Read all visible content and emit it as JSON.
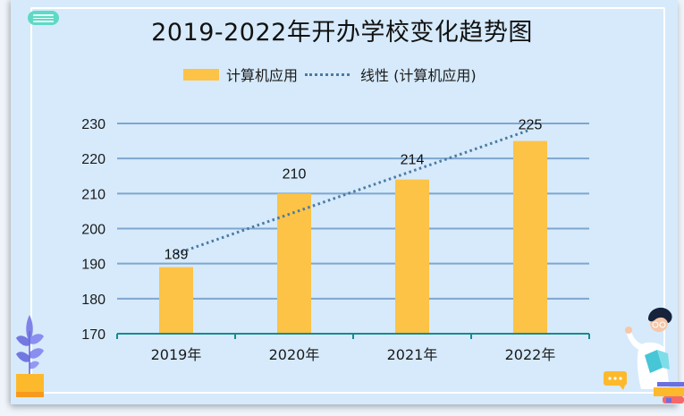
{
  "window": {
    "menu_icon": "hamburger-menu-icon"
  },
  "chart_data": {
    "type": "bar",
    "title": "2019-2022年开办学校变化趋势图",
    "categories": [
      "2019年",
      "2020年",
      "2021年",
      "2022年"
    ],
    "series": [
      {
        "name": "计算机应用",
        "type": "bar",
        "color": "#FCC347",
        "values": [
          189,
          210,
          214,
          225
        ]
      },
      {
        "name": "线性 (计算机应用)",
        "type": "line",
        "style": "dotted",
        "color": "#4B7AA3",
        "values": [
          192.8,
          204.6,
          216.4,
          228.2
        ]
      }
    ],
    "data_labels": [
      "189",
      "210",
      "214",
      "225"
    ],
    "xlabel": "",
    "ylabel": "",
    "ylim": [
      170,
      230
    ],
    "yticks": [
      "170",
      "180",
      "190",
      "200",
      "210",
      "220",
      "230"
    ],
    "grid": true,
    "legend_position": "top"
  },
  "legend": {
    "bar_label": "计算机应用",
    "line_label": "线性 (计算机应用)"
  },
  "decorations": {
    "left": "potted-plant-illustration",
    "right": "teacher-with-book-illustration"
  }
}
